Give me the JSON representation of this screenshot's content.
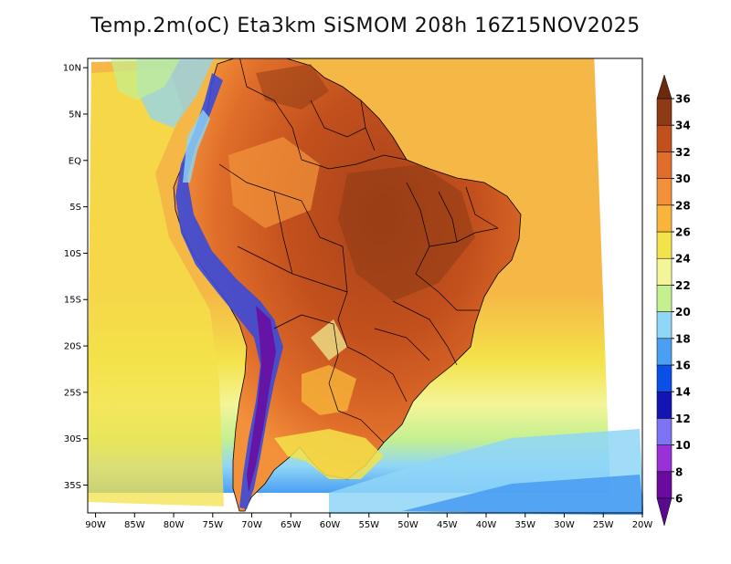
{
  "title": "Temp.2m(oC) Eta3km SiSMOM 208h 16Z15NOV2025",
  "map": {
    "variable": "2 m temperature",
    "units": "oC",
    "lon_range": [
      -91,
      -20
    ],
    "lat_range": [
      -38,
      11
    ],
    "lat_ticks": [
      {
        "value": 10,
        "label": "10N"
      },
      {
        "value": 5,
        "label": "5N"
      },
      {
        "value": 0,
        "label": "EQ"
      },
      {
        "value": -5,
        "label": "5S"
      },
      {
        "value": -10,
        "label": "10S"
      },
      {
        "value": -15,
        "label": "15S"
      },
      {
        "value": -20,
        "label": "20S"
      },
      {
        "value": -25,
        "label": "25S"
      },
      {
        "value": -30,
        "label": "30S"
      },
      {
        "value": -35,
        "label": "35S"
      }
    ],
    "lon_ticks": [
      {
        "value": -90,
        "label": "90W"
      },
      {
        "value": -85,
        "label": "85W"
      },
      {
        "value": -80,
        "label": "80W"
      },
      {
        "value": -75,
        "label": "75W"
      },
      {
        "value": -70,
        "label": "70W"
      },
      {
        "value": -65,
        "label": "65W"
      },
      {
        "value": -60,
        "label": "60W"
      },
      {
        "value": -55,
        "label": "55W"
      },
      {
        "value": -50,
        "label": "50W"
      },
      {
        "value": -45,
        "label": "45W"
      },
      {
        "value": -40,
        "label": "40W"
      },
      {
        "value": -35,
        "label": "35W"
      },
      {
        "value": -30,
        "label": "30W"
      },
      {
        "value": -25,
        "label": "25W"
      },
      {
        "value": -20,
        "label": "20W"
      }
    ]
  },
  "colorbar": {
    "levels": [
      6,
      8,
      10,
      12,
      14,
      16,
      18,
      20,
      22,
      24,
      26,
      28,
      30,
      32,
      34,
      36
    ],
    "colors": [
      "#6a0aa0",
      "#9a30d8",
      "#7c74f5",
      "#1414b4",
      "#0a50e6",
      "#4a9ff2",
      "#8fd6f7",
      "#c4f090",
      "#f3f598",
      "#f4e24a",
      "#f8b53a",
      "#f2913a",
      "#e06e2a",
      "#c2501d",
      "#8e3a14"
    ],
    "low_color": "#5a0a8c",
    "high_color": "#6b2a0e"
  },
  "colors": {
    "ocean_warm": "#f5b846",
    "ocean_mid": "#f4e24a",
    "ocean_cool": "#c4f090",
    "ocean_cold": "#8fd6f7",
    "land_hot": "#c2501d",
    "land_warm": "#e06e2a",
    "andes_cold": "#3a4ad8",
    "border": "#000000"
  }
}
